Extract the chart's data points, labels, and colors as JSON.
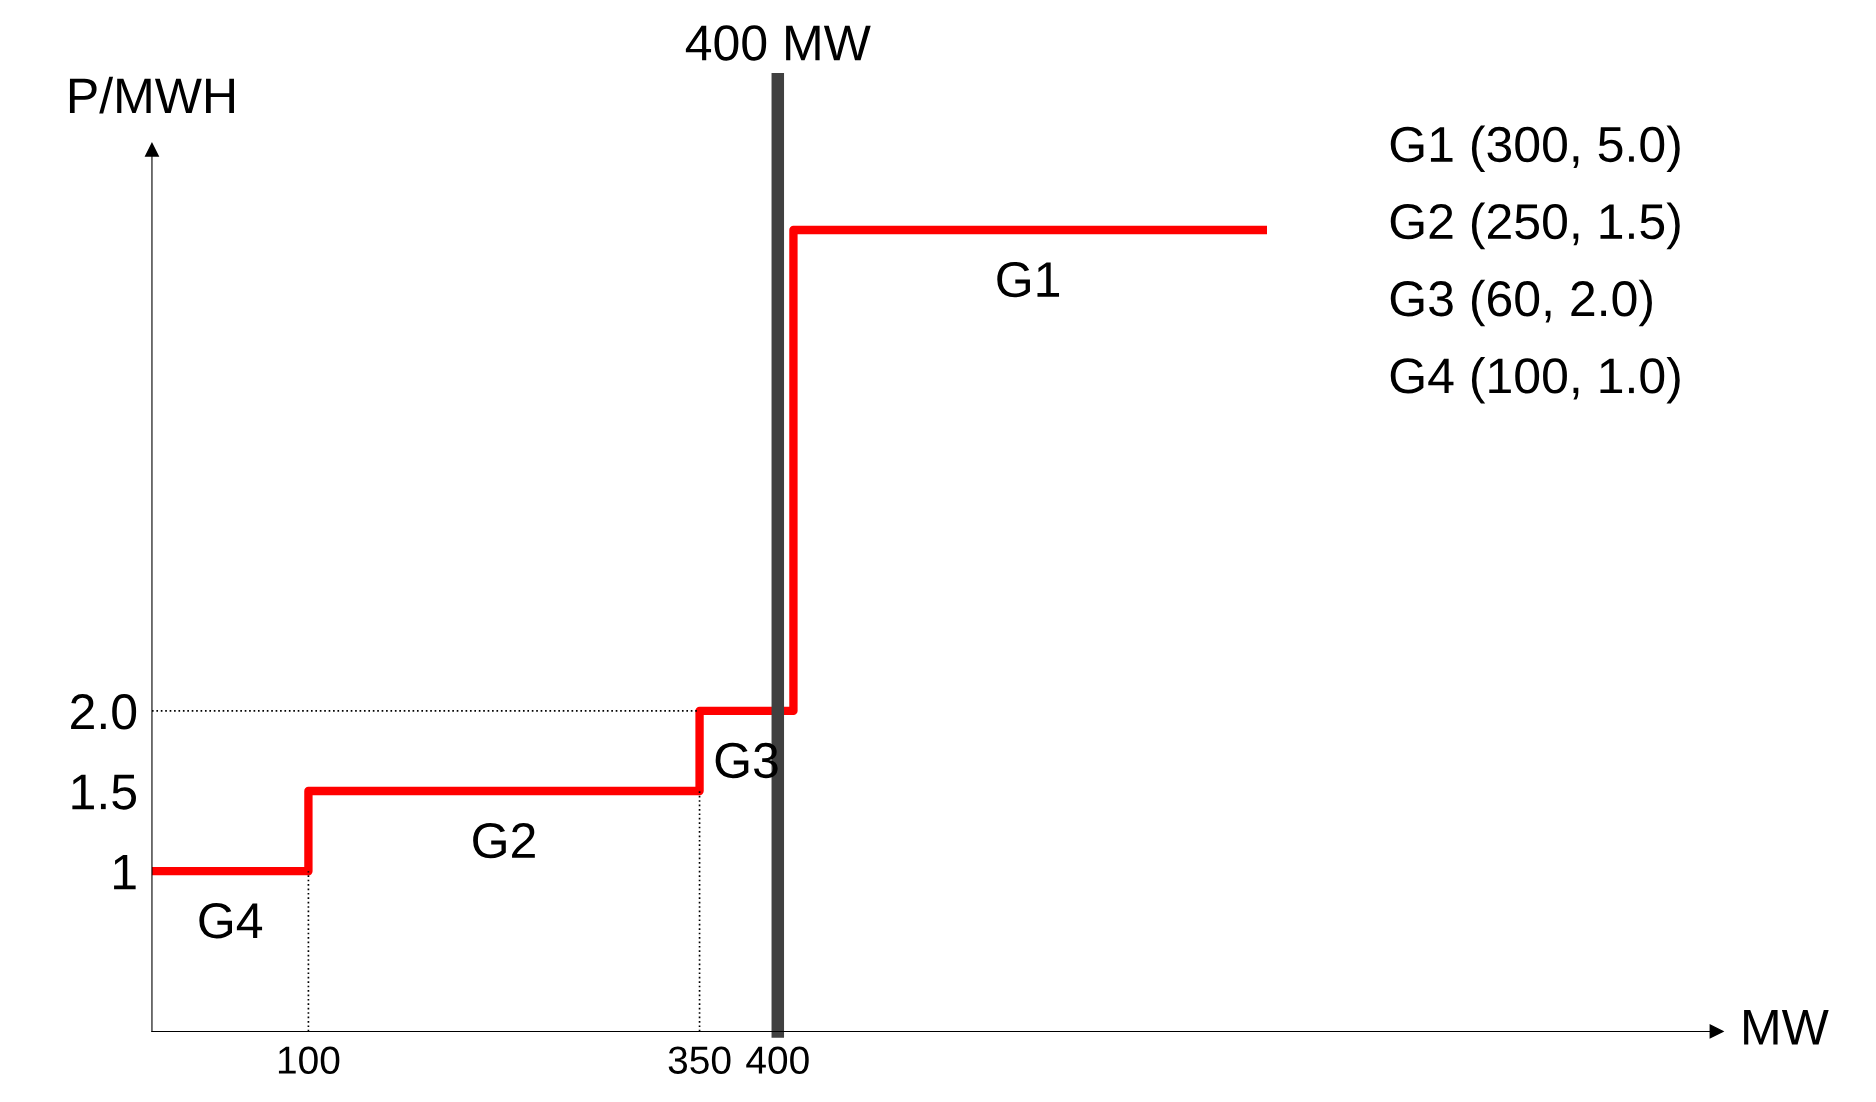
{
  "chart_data": {
    "type": "step",
    "xlabel": "MW",
    "ylabel": "P/MWH",
    "series": [
      {
        "color": "#ff0000",
        "x": [
          0,
          100,
          350,
          410,
          710
        ],
        "values": [
          1,
          1.5,
          2.0,
          5.0,
          5.0
        ]
      },
      {
        "color": "#000000",
        "type": "line",
        "line_style": "dotted",
        "x": [
          0,
          350
        ],
        "values": [
          2.0,
          2.0
        ]
      },
      {
        "color": "#000000",
        "type": "line",
        "line_style": "dotted",
        "x": [
          100,
          100
        ],
        "values": [
          0,
          1
        ]
      },
      {
        "color": "#000000",
        "type": "line",
        "line_style": "dotted",
        "x": [
          350,
          350
        ],
        "values": [
          0,
          1.5
        ]
      }
    ],
    "xlim": [
      0,
      1000
    ],
    "ylim": [
      0,
      5.5
    ],
    "xticks": [
      100,
      350,
      400
    ],
    "yticks": [
      1,
      1.5,
      {
        "value": 2.0,
        "label": "2.0"
      }
    ],
    "ref_lines": [
      {
        "axis": "x",
        "value": 400,
        "label": "400 MW",
        "color": "#404040"
      }
    ],
    "annotations": [
      {
        "text": "G4",
        "x": 50,
        "y": 1
      },
      {
        "text": "G2",
        "x": 225,
        "y": 1.5
      },
      {
        "text": "G3",
        "x": 380,
        "y": 2.0
      },
      {
        "text": "G1",
        "x": 560,
        "y": 5.0
      },
      "G1 (300, 5.0)",
      "G2 (250, 1.5)",
      "G3 (60, 2.0)",
      "G4 (100, 1.0)"
    ],
    "grid": false,
    "legend": false
  }
}
